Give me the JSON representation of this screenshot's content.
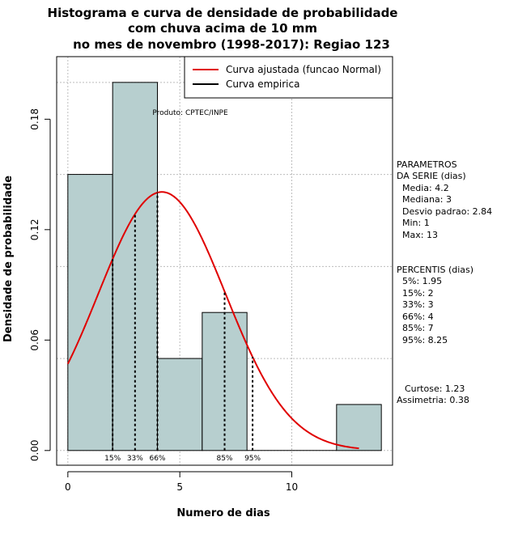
{
  "chart_data": {
    "type": "bar",
    "title_lines": [
      "Histograma e curva de densidade de probabilidade",
      "com chuva acima de 10 mm",
      "no mes de novembro (1998-2017): Regiao 123"
    ],
    "xlabel": "Numero de dias",
    "ylabel": "Densidade de probabilidade",
    "xlim": [
      -0.5,
      14.5
    ],
    "ylim": [
      -0.008,
      0.214
    ],
    "x_ticks": [
      0,
      5,
      10
    ],
    "x_tick_labels": [
      "0",
      "5",
      "10"
    ],
    "y_ticks": [
      0.0,
      0.06,
      0.12,
      0.18
    ],
    "y_tick_labels": [
      "0.00",
      "0.06",
      "0.12",
      "0.18"
    ],
    "grid_x": [
      0,
      5,
      10
    ],
    "grid_y": [
      0.0,
      0.05,
      0.1,
      0.15,
      0.2
    ],
    "bins": [
      {
        "start": 0,
        "end": 2,
        "density": 0.15
      },
      {
        "start": 2,
        "end": 4,
        "density": 0.2
      },
      {
        "start": 4,
        "end": 6,
        "density": 0.05
      },
      {
        "start": 6,
        "end": 8,
        "density": 0.075
      },
      {
        "start": 8,
        "end": 10,
        "density": 0.0
      },
      {
        "start": 10,
        "end": 12,
        "density": 0.0
      },
      {
        "start": 12,
        "end": 14,
        "density": 0.025
      }
    ],
    "bar_color": "#b7cfcf",
    "normal_curve": {
      "mean": 4.2,
      "sd": 2.84,
      "x_from": 0,
      "x_to": 13,
      "color": "#e00000"
    },
    "percentile_lines": [
      {
        "x": 2,
        "label": "15%"
      },
      {
        "x": 3,
        "label": "33%"
      },
      {
        "x": 4,
        "label": "66%"
      },
      {
        "x": 7,
        "label": "85%"
      },
      {
        "x": 8.25,
        "label": "95%"
      }
    ],
    "legend": {
      "position": "top-right",
      "entries": [
        {
          "label": "Curva ajustada (funcao Normal)",
          "color": "#e00000"
        },
        {
          "label": "Curva empirica",
          "color": "#000000"
        }
      ]
    },
    "source_note": "Produto: CPTEC/INPE",
    "parameters": {
      "heading": [
        "PARAMETROS",
        "DA SERIE (dias)"
      ],
      "lines": [
        "Media: 4.2",
        "Mediana: 3",
        "Desvio padrao: 2.84",
        "Min: 1",
        "Max: 13"
      ]
    },
    "percentis": {
      "heading": "PERCENTIS (dias)",
      "lines": [
        "5%: 1.95",
        "15%: 2",
        "33%: 3",
        "66%: 4",
        "85%: 7",
        "95%: 8.25"
      ]
    },
    "moments": [
      "Curtose: 1.23",
      "Assimetria: 0.38"
    ]
  }
}
